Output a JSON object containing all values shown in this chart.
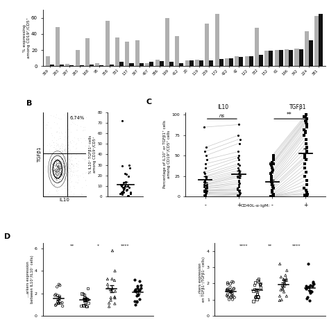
{
  "bar_upns": [
    "369",
    "293",
    "297",
    "265",
    "168",
    "95",
    "358",
    "331",
    "137",
    "397",
    "407",
    "386",
    "199",
    "412",
    "20",
    "119",
    "239",
    "172",
    "422",
    "42",
    "122",
    "332",
    "152",
    "61",
    "196",
    "342",
    "224",
    "381"
  ],
  "bar_gray": [
    12,
    49,
    3,
    20,
    35,
    4,
    56,
    36,
    30,
    32,
    4,
    8,
    60,
    37,
    7,
    8,
    53,
    65,
    10,
    12,
    12,
    48,
    19,
    20,
    21,
    22,
    43,
    62
  ],
  "bar_black": [
    2,
    2,
    1,
    1,
    2,
    1,
    2,
    5,
    4,
    4,
    5,
    6,
    5,
    4,
    7,
    7,
    7,
    9,
    10,
    11,
    12,
    14,
    19,
    20,
    20,
    21,
    32,
    65
  ],
  "scatter_b_y": [
    72,
    30,
    29,
    27,
    22,
    21,
    19,
    14,
    13,
    11,
    11,
    10,
    10,
    10,
    9,
    9,
    8,
    7,
    7,
    6,
    6,
    5,
    5,
    5,
    4,
    4,
    4,
    4,
    3,
    3,
    3,
    2,
    1,
    0.5
  ],
  "il10_minus": [
    85,
    60,
    55,
    50,
    45,
    40,
    35,
    30,
    28,
    25,
    24,
    22,
    20,
    18,
    17,
    15,
    15,
    14,
    12,
    12,
    10,
    10,
    8,
    8,
    7,
    6,
    5,
    5,
    4,
    3,
    2,
    1,
    0
  ],
  "il10_plus": [
    88,
    75,
    70,
    65,
    55,
    50,
    48,
    45,
    40,
    38,
    35,
    32,
    30,
    28,
    26,
    25,
    23,
    20,
    18,
    16,
    15,
    12,
    10,
    9,
    8,
    7,
    5,
    4,
    3,
    2,
    1,
    0,
    0
  ],
  "tgfb1_minus": [
    50,
    48,
    45,
    42,
    40,
    40,
    38,
    35,
    32,
    30,
    28,
    25,
    22,
    20,
    18,
    17,
    15,
    12,
    10,
    8,
    5,
    3,
    2,
    1,
    0,
    0,
    0,
    0,
    0,
    0,
    0,
    0,
    0
  ],
  "tgfb1_plus": [
    100,
    98,
    97,
    95,
    93,
    92,
    90,
    88,
    85,
    82,
    80,
    78,
    75,
    70,
    65,
    60,
    55,
    50,
    48,
    45,
    40,
    35,
    30,
    25,
    20,
    15,
    10,
    8,
    5,
    3,
    2,
    0,
    0
  ],
  "background_color": "#ffffff"
}
